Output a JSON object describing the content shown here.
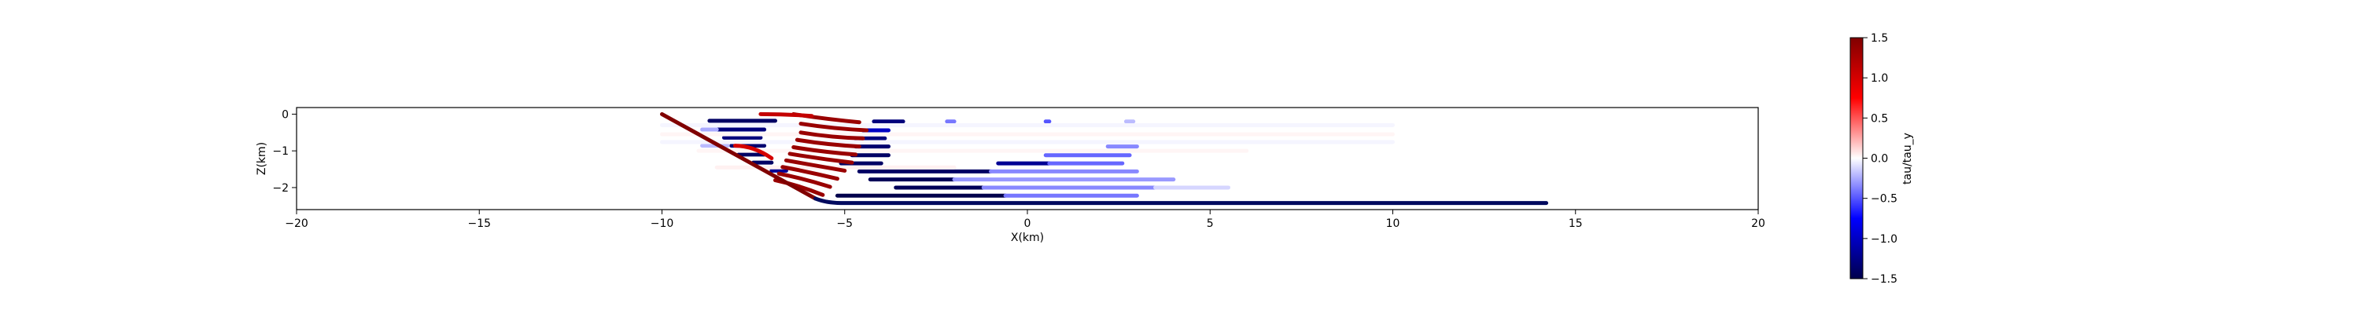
{
  "chart_data": {
    "type": "scatter",
    "title": "",
    "xlabel": "X(km)",
    "ylabel": "Z(km)",
    "xlim": [
      -20,
      20
    ],
    "ylim": [
      -2.6,
      0.18
    ],
    "xticks": [
      -20,
      -15,
      -10,
      -5,
      0,
      5,
      10,
      15,
      20
    ],
    "xtick_labels": [
      "−20",
      "−15",
      "−10",
      "−5",
      "0",
      "5",
      "10",
      "15",
      "20"
    ],
    "yticks": [
      0,
      -1,
      -2
    ],
    "ytick_labels": [
      "0",
      "−1",
      "−2"
    ],
    "grid": false,
    "colormap": "seismic",
    "colorbar": {
      "label": "tau/tau_y",
      "vmin": -1.5,
      "vmax": 1.5,
      "ticks": [
        1.5,
        1.0,
        0.5,
        0.0,
        -0.5,
        -1.0,
        -1.5
      ],
      "tick_labels": [
        "1.5",
        "1.0",
        "0.5",
        "0.0",
        "−0.5",
        "−1.0",
        "−1.5"
      ],
      "colors": [
        "#00004c",
        "#0000ff",
        "#ffffff",
        "#ff0000",
        "#800000"
      ]
    },
    "fault": {
      "name": "fault",
      "points": [
        [
          -10.0,
          0.0
        ],
        [
          -5.8,
          -2.3
        ],
        [
          -5.5,
          -2.42
        ],
        [
          14.2,
          -2.42
        ]
      ],
      "dip_color": "#800000",
      "flat_color": "#000a5e"
    },
    "segments": [
      {
        "z": -0.18,
        "x0": -8.7,
        "x1": -6.9,
        "value": -1.4
      },
      {
        "z": -0.42,
        "x0": -8.5,
        "x1": -7.2,
        "value": -1.3
      },
      {
        "z": -0.64,
        "x0": -8.3,
        "x1": -7.3,
        "value": -1.3
      },
      {
        "z": -0.86,
        "x0": -8.1,
        "x1": -7.2,
        "value": -1.35
      },
      {
        "z": -1.1,
        "x0": -7.9,
        "x1": -7.2,
        "value": -1.4
      },
      {
        "z": -1.32,
        "x0": -7.5,
        "x1": -7.0,
        "value": -1.4
      },
      {
        "z": -1.54,
        "x0": -7.0,
        "x1": -6.6,
        "value": -1.2
      },
      {
        "z": -0.2,
        "x0": -4.2,
        "x1": -3.4,
        "value": -1.3
      },
      {
        "z": -0.44,
        "x0": -4.5,
        "x1": -3.8,
        "value": -1.0
      },
      {
        "z": -0.66,
        "x0": -4.7,
        "x1": -3.9,
        "value": -1.3
      },
      {
        "z": -0.88,
        "x0": -4.7,
        "x1": -3.8,
        "value": -1.35
      },
      {
        "z": -1.12,
        "x0": -4.8,
        "x1": -3.8,
        "value": -1.4
      },
      {
        "z": -1.34,
        "x0": -5.1,
        "x1": -4.0,
        "value": -1.4
      },
      {
        "z": -1.56,
        "x0": -4.6,
        "x1": -1.0,
        "value": -1.4
      },
      {
        "z": -1.56,
        "x0": -1.0,
        "x1": 3.0,
        "value": -0.35
      },
      {
        "z": -1.78,
        "x0": -4.3,
        "x1": -2.0,
        "value": -1.45
      },
      {
        "z": -1.78,
        "x0": -2.0,
        "x1": 4.0,
        "value": -0.3
      },
      {
        "z": -2.0,
        "x0": -3.6,
        "x1": -1.2,
        "value": -1.45
      },
      {
        "z": -2.0,
        "x0": -1.2,
        "x1": 3.5,
        "value": -0.35
      },
      {
        "z": -2.0,
        "x0": 3.5,
        "x1": 5.5,
        "value": -0.12
      },
      {
        "z": -2.22,
        "x0": -5.2,
        "x1": -0.6,
        "value": -1.5
      },
      {
        "z": -2.22,
        "x0": -0.6,
        "x1": 3.0,
        "value": -0.4
      },
      {
        "z": -1.34,
        "x0": -0.8,
        "x1": 0.6,
        "value": -1.2
      },
      {
        "z": -1.34,
        "x0": 0.6,
        "x1": 2.6,
        "value": -0.45
      },
      {
        "z": -1.12,
        "x0": 0.5,
        "x1": 2.8,
        "value": -0.45
      },
      {
        "z": -0.88,
        "x0": 2.2,
        "x1": 3.0,
        "value": -0.35
      },
      {
        "z": -0.2,
        "x0": -2.2,
        "x1": -2.0,
        "value": -0.4
      },
      {
        "z": -0.2,
        "x0": 0.5,
        "x1": 0.6,
        "value": -0.5
      },
      {
        "z": -0.2,
        "x0": 2.7,
        "x1": 2.9,
        "value": -0.2
      },
      {
        "z": -0.86,
        "x0": -8.9,
        "x1": -8.2,
        "value": -0.2
      },
      {
        "z": -0.42,
        "x0": -8.9,
        "x1": -8.5,
        "value": -0.25
      },
      {
        "z": -0.3,
        "x0": -10.0,
        "x1": 10.0,
        "value": -0.03
      },
      {
        "z": -0.55,
        "x0": -10.0,
        "x1": 10.0,
        "value": 0.03
      },
      {
        "z": -0.76,
        "x0": -10.0,
        "x1": 10.0,
        "value": -0.03
      },
      {
        "z": -1.0,
        "x0": -9.0,
        "x1": 6.0,
        "value": 0.03
      },
      {
        "z": -1.45,
        "x0": -8.5,
        "x1": -2.0,
        "value": 0.04
      }
    ],
    "arcs": [
      {
        "x0": -6.4,
        "z0": 0.0,
        "x1": -4.6,
        "z1": -0.22,
        "bulge": 0.05,
        "value": 1.35
      },
      {
        "x0": -6.2,
        "z0": -0.26,
        "x1": -4.4,
        "z1": -0.44,
        "bulge": 0.05,
        "value": 1.35
      },
      {
        "x0": -6.2,
        "z0": -0.5,
        "x1": -4.5,
        "z1": -0.66,
        "bulge": 0.05,
        "value": 1.35
      },
      {
        "x0": -6.3,
        "z0": -0.7,
        "x1": -4.6,
        "z1": -0.88,
        "bulge": 0.05,
        "value": 1.35
      },
      {
        "x0": -6.4,
        "z0": -0.9,
        "x1": -4.7,
        "z1": -1.1,
        "bulge": 0.05,
        "value": 1.35
      },
      {
        "x0": -6.5,
        "z0": -1.08,
        "x1": -4.8,
        "z1": -1.32,
        "bulge": 0.05,
        "value": 1.35
      },
      {
        "x0": -6.6,
        "z0": -1.26,
        "x1": -5.0,
        "z1": -1.54,
        "bulge": 0.05,
        "value": 1.35
      },
      {
        "x0": -6.7,
        "z0": -1.44,
        "x1": -5.2,
        "z1": -1.76,
        "bulge": 0.05,
        "value": 1.35
      },
      {
        "x0": -6.8,
        "z0": -1.62,
        "x1": -5.4,
        "z1": -1.98,
        "bulge": 0.05,
        "value": 1.35
      },
      {
        "x0": -6.9,
        "z0": -1.8,
        "x1": -5.6,
        "z1": -2.2,
        "bulge": 0.05,
        "value": 1.35
      },
      {
        "x0": -7.3,
        "z0": 0.0,
        "x1": -5.9,
        "z1": -0.05,
        "bulge": 0.0,
        "value": 1.1
      },
      {
        "x0": -8.0,
        "z0": -0.86,
        "x1": -7.0,
        "z1": -1.2,
        "bulge": 0.0,
        "value": 1.0
      }
    ]
  }
}
